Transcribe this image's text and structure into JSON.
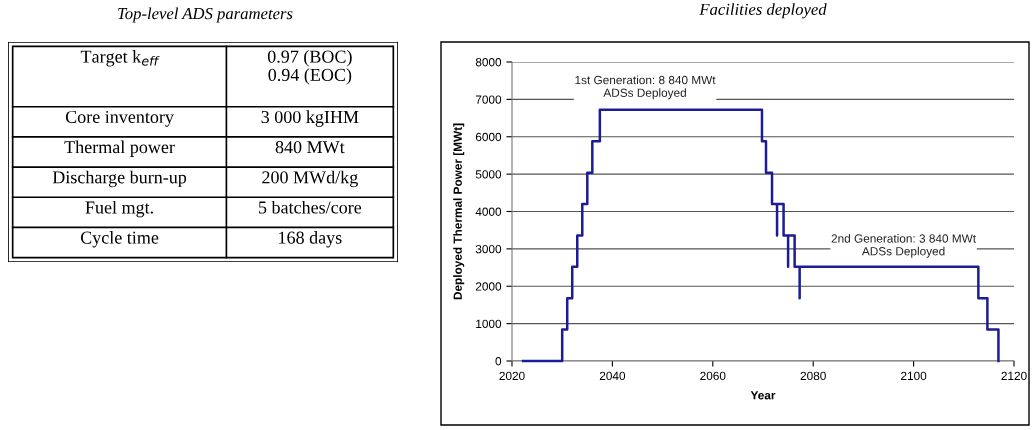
{
  "chart_data": [
    {
      "type": "other",
      "title": "Top-level ADS parameters",
      "annotations": [
        "Target k$_{eff}$",
        "0.97 (BOC)\n0.94 (EOC)",
        "Core inventory",
        "3 000 kgIHM",
        "Thermal power",
        "840 MWt",
        "Discharge burn-up",
        "200 MWd/kg",
        "Fuel mgt.",
        "5 batches/core",
        "Cycle time",
        "168 days"
      ]
    },
    {
      "type": "step",
      "title": "Facilities deployed",
      "xlabel": "Year",
      "ylabel": "Deployed Thermal Power [MWt]",
      "series": [
        {
          "color": "#1c1c96",
          "x": [
            2022.2,
            2030,
            2031,
            2032,
            2033,
            2034,
            2035,
            2036,
            2037.5,
            2069.8,
            2070.6,
            2071.8,
            2072.8,
            2072.8,
            2074.1,
            2075,
            2075,
            2076.3,
            2077.3,
            2077.3,
            2112.9,
            2114.7,
            2116.9
          ],
          "values": [
            0,
            840,
            1680,
            2520,
            3360,
            4200,
            5040,
            5880,
            6720,
            5880,
            5040,
            4200,
            3360,
            4200,
            3360,
            2520,
            3360,
            2520,
            1680,
            2520,
            1680,
            840,
            0
          ]
        }
      ],
      "xlim": [
        2020,
        2120
      ],
      "xticks": [
        2020,
        2040,
        2060,
        2080,
        2100,
        2120
      ],
      "ylim": [
        0,
        8000
      ],
      "yticks": [
        0,
        1000,
        2000,
        3000,
        4000,
        5000,
        6000,
        7000,
        8000
      ],
      "grid": "y",
      "annotations": [
        "1st Generation: 8 840 MWt\nADSs Deployed",
        "2nd Generation: 3 840 MWt\nADSs Deployed"
      ]
    }
  ]
}
